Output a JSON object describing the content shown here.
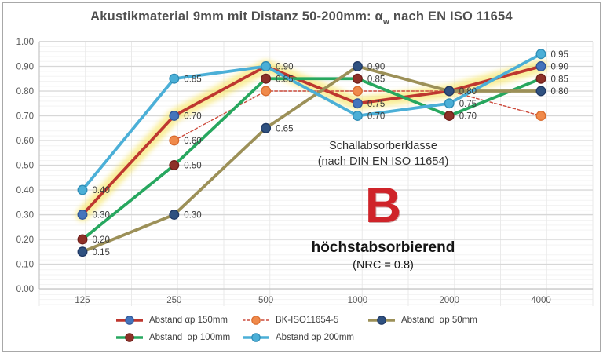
{
  "title": {
    "pre": "Akustikmaterial 9mm mit Distanz 50-200mm: α",
    "sub": "w",
    "post": " nach EN ISO 11654"
  },
  "chart_data": {
    "type": "line",
    "title": "Akustikmaterial 9mm mit Distanz 50-200mm: αw nach EN ISO 11654",
    "xlabel": "",
    "ylabel": "",
    "categories": [
      "125",
      "250",
      "500",
      "1000",
      "2000",
      "4000"
    ],
    "ylim": [
      0.0,
      1.0
    ],
    "ytick_step": 0.1,
    "yticks": [
      "0.00",
      "0.10",
      "0.20",
      "0.30",
      "0.40",
      "0.50",
      "0.60",
      "0.70",
      "0.80",
      "0.90",
      "1.00"
    ],
    "grid": true,
    "legend_position": "bottom",
    "highlight_color": "#F6E24B",
    "series": [
      {
        "id": "s150",
        "name": "Abstand αp 150mm",
        "line_color": "#BE372F",
        "marker_color": "#4474BC",
        "marker_edge": "#2F5597",
        "dashed": false,
        "highlighted": true,
        "values": [
          0.3,
          0.7,
          0.9,
          0.75,
          0.8,
          0.9
        ]
      },
      {
        "id": "bk",
        "name": "BK-ISO11654-5",
        "line_color": "#CC4A3C",
        "marker_color": "#F08A4B",
        "marker_edge": "#D86B2E",
        "dashed": true,
        "highlighted": false,
        "values": [
          null,
          0.6,
          0.8,
          0.8,
          0.8,
          0.7
        ]
      },
      {
        "id": "s100",
        "name": "Abstand  αp 100mm",
        "line_color": "#27A75F",
        "marker_color": "#8E3028",
        "marker_edge": "#6E1F1A",
        "dashed": false,
        "highlighted": false,
        "values": [
          0.2,
          0.5,
          0.85,
          0.85,
          0.7,
          0.85
        ]
      },
      {
        "id": "s50",
        "name": "Abstand  αp 50mm",
        "line_color": "#9C9058",
        "marker_color": "#2F5180",
        "marker_edge": "#1F3864",
        "dashed": false,
        "highlighted": false,
        "values": [
          0.15,
          0.3,
          0.65,
          0.9,
          0.8,
          0.8
        ]
      },
      {
        "id": "s200",
        "name": "Abstand αp 200mm",
        "line_color": "#4BAFD7",
        "marker_color": "#4BAFD7",
        "marker_edge": "#2E8CB5",
        "dashed": false,
        "highlighted": false,
        "values": [
          0.4,
          0.85,
          0.9,
          0.7,
          0.75,
          0.95
        ]
      }
    ],
    "point_labels": [
      {
        "ci": 0,
        "value": 0.4,
        "text": "0.40"
      },
      {
        "ci": 0,
        "value": 0.3,
        "text": "0.30"
      },
      {
        "ci": 0,
        "value": 0.2,
        "text": "0.20"
      },
      {
        "ci": 0,
        "value": 0.15,
        "text": "0.15"
      },
      {
        "ci": 1,
        "value": 0.85,
        "text": "0.85"
      },
      {
        "ci": 1,
        "value": 0.7,
        "text": "0.70"
      },
      {
        "ci": 1,
        "value": 0.6,
        "text": "0.60"
      },
      {
        "ci": 1,
        "value": 0.5,
        "text": "0.50"
      },
      {
        "ci": 1,
        "value": 0.3,
        "text": "0.30"
      },
      {
        "ci": 2,
        "value": 0.9,
        "text": "0.90"
      },
      {
        "ci": 2,
        "value": 0.85,
        "text": "0.85"
      },
      {
        "ci": 2,
        "value": 0.65,
        "text": "0.65"
      },
      {
        "ci": 3,
        "value": 0.9,
        "text": "0.90"
      },
      {
        "ci": 3,
        "value": 0.85,
        "text": "0.85"
      },
      {
        "ci": 3,
        "value": 0.75,
        "text": "0.75"
      },
      {
        "ci": 3,
        "value": 0.7,
        "text": "0.70"
      },
      {
        "ci": 4,
        "value": 0.8,
        "text": "0.80"
      },
      {
        "ci": 4,
        "value": 0.75,
        "text": "0.75"
      },
      {
        "ci": 4,
        "value": 0.7,
        "text": "0.70"
      },
      {
        "ci": 5,
        "value": 0.95,
        "text": "0.95"
      },
      {
        "ci": 5,
        "value": 0.9,
        "text": "0.90"
      },
      {
        "ci": 5,
        "value": 0.85,
        "text": "0.85"
      },
      {
        "ci": 5,
        "value": 0.8,
        "text": "0.80"
      }
    ]
  },
  "annotation": {
    "line1": "Schallabsorberklasse",
    "line2": "(nach DIN EN ISO 11654)",
    "class_letter": "B",
    "class_color": "#CF2329",
    "line3": "höchstabsorbierend",
    "line4": "(NRC = 0.8)"
  },
  "legend": {
    "rows": [
      [
        "s150",
        "bk",
        "s50"
      ],
      [
        "s100",
        "s200"
      ]
    ]
  }
}
